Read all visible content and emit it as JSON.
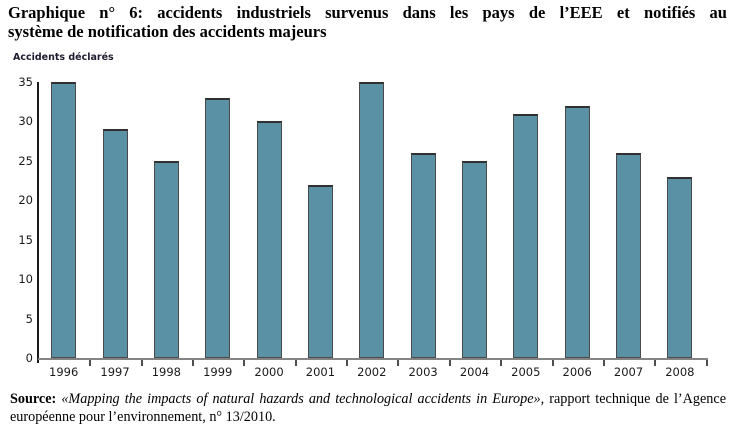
{
  "title": {
    "line1": "Graphique n° 6: accidents industriels survenus dans les pays de l’EEE et notifiés au",
    "line2": "système de notification des accidents majeurs"
  },
  "chart_data": {
    "type": "bar",
    "title": "Graphique n° 6: accidents industriels survenus dans les pays de l’EEE et notifiés au système de notification des accidents majeurs",
    "ylabel": "Accidents déclarés",
    "xlabel": "",
    "categories": [
      "1996",
      "1997",
      "1998",
      "1999",
      "2000",
      "2001",
      "2002",
      "2003",
      "2004",
      "2005",
      "2006",
      "2007",
      "2008"
    ],
    "values": [
      35,
      29,
      25,
      33,
      30,
      22,
      35,
      26,
      25,
      31,
      32,
      26,
      23
    ],
    "ylim": [
      0,
      35
    ],
    "yticks": [
      0,
      5,
      10,
      15,
      20,
      25,
      30,
      35
    ],
    "grid": false,
    "legend": false,
    "bar_color": "#5a91a5",
    "bar_border_color": "#4a4a4a",
    "axis_color": "#1a1a1a"
  },
  "source": {
    "label": "Source:",
    "quote": " «Mapping the impacts of natural hazards and technological accidents in Europe»",
    "rest": ", rapport  technique de l’Agence européenne pour l’environnement,  n° 13/2010."
  }
}
